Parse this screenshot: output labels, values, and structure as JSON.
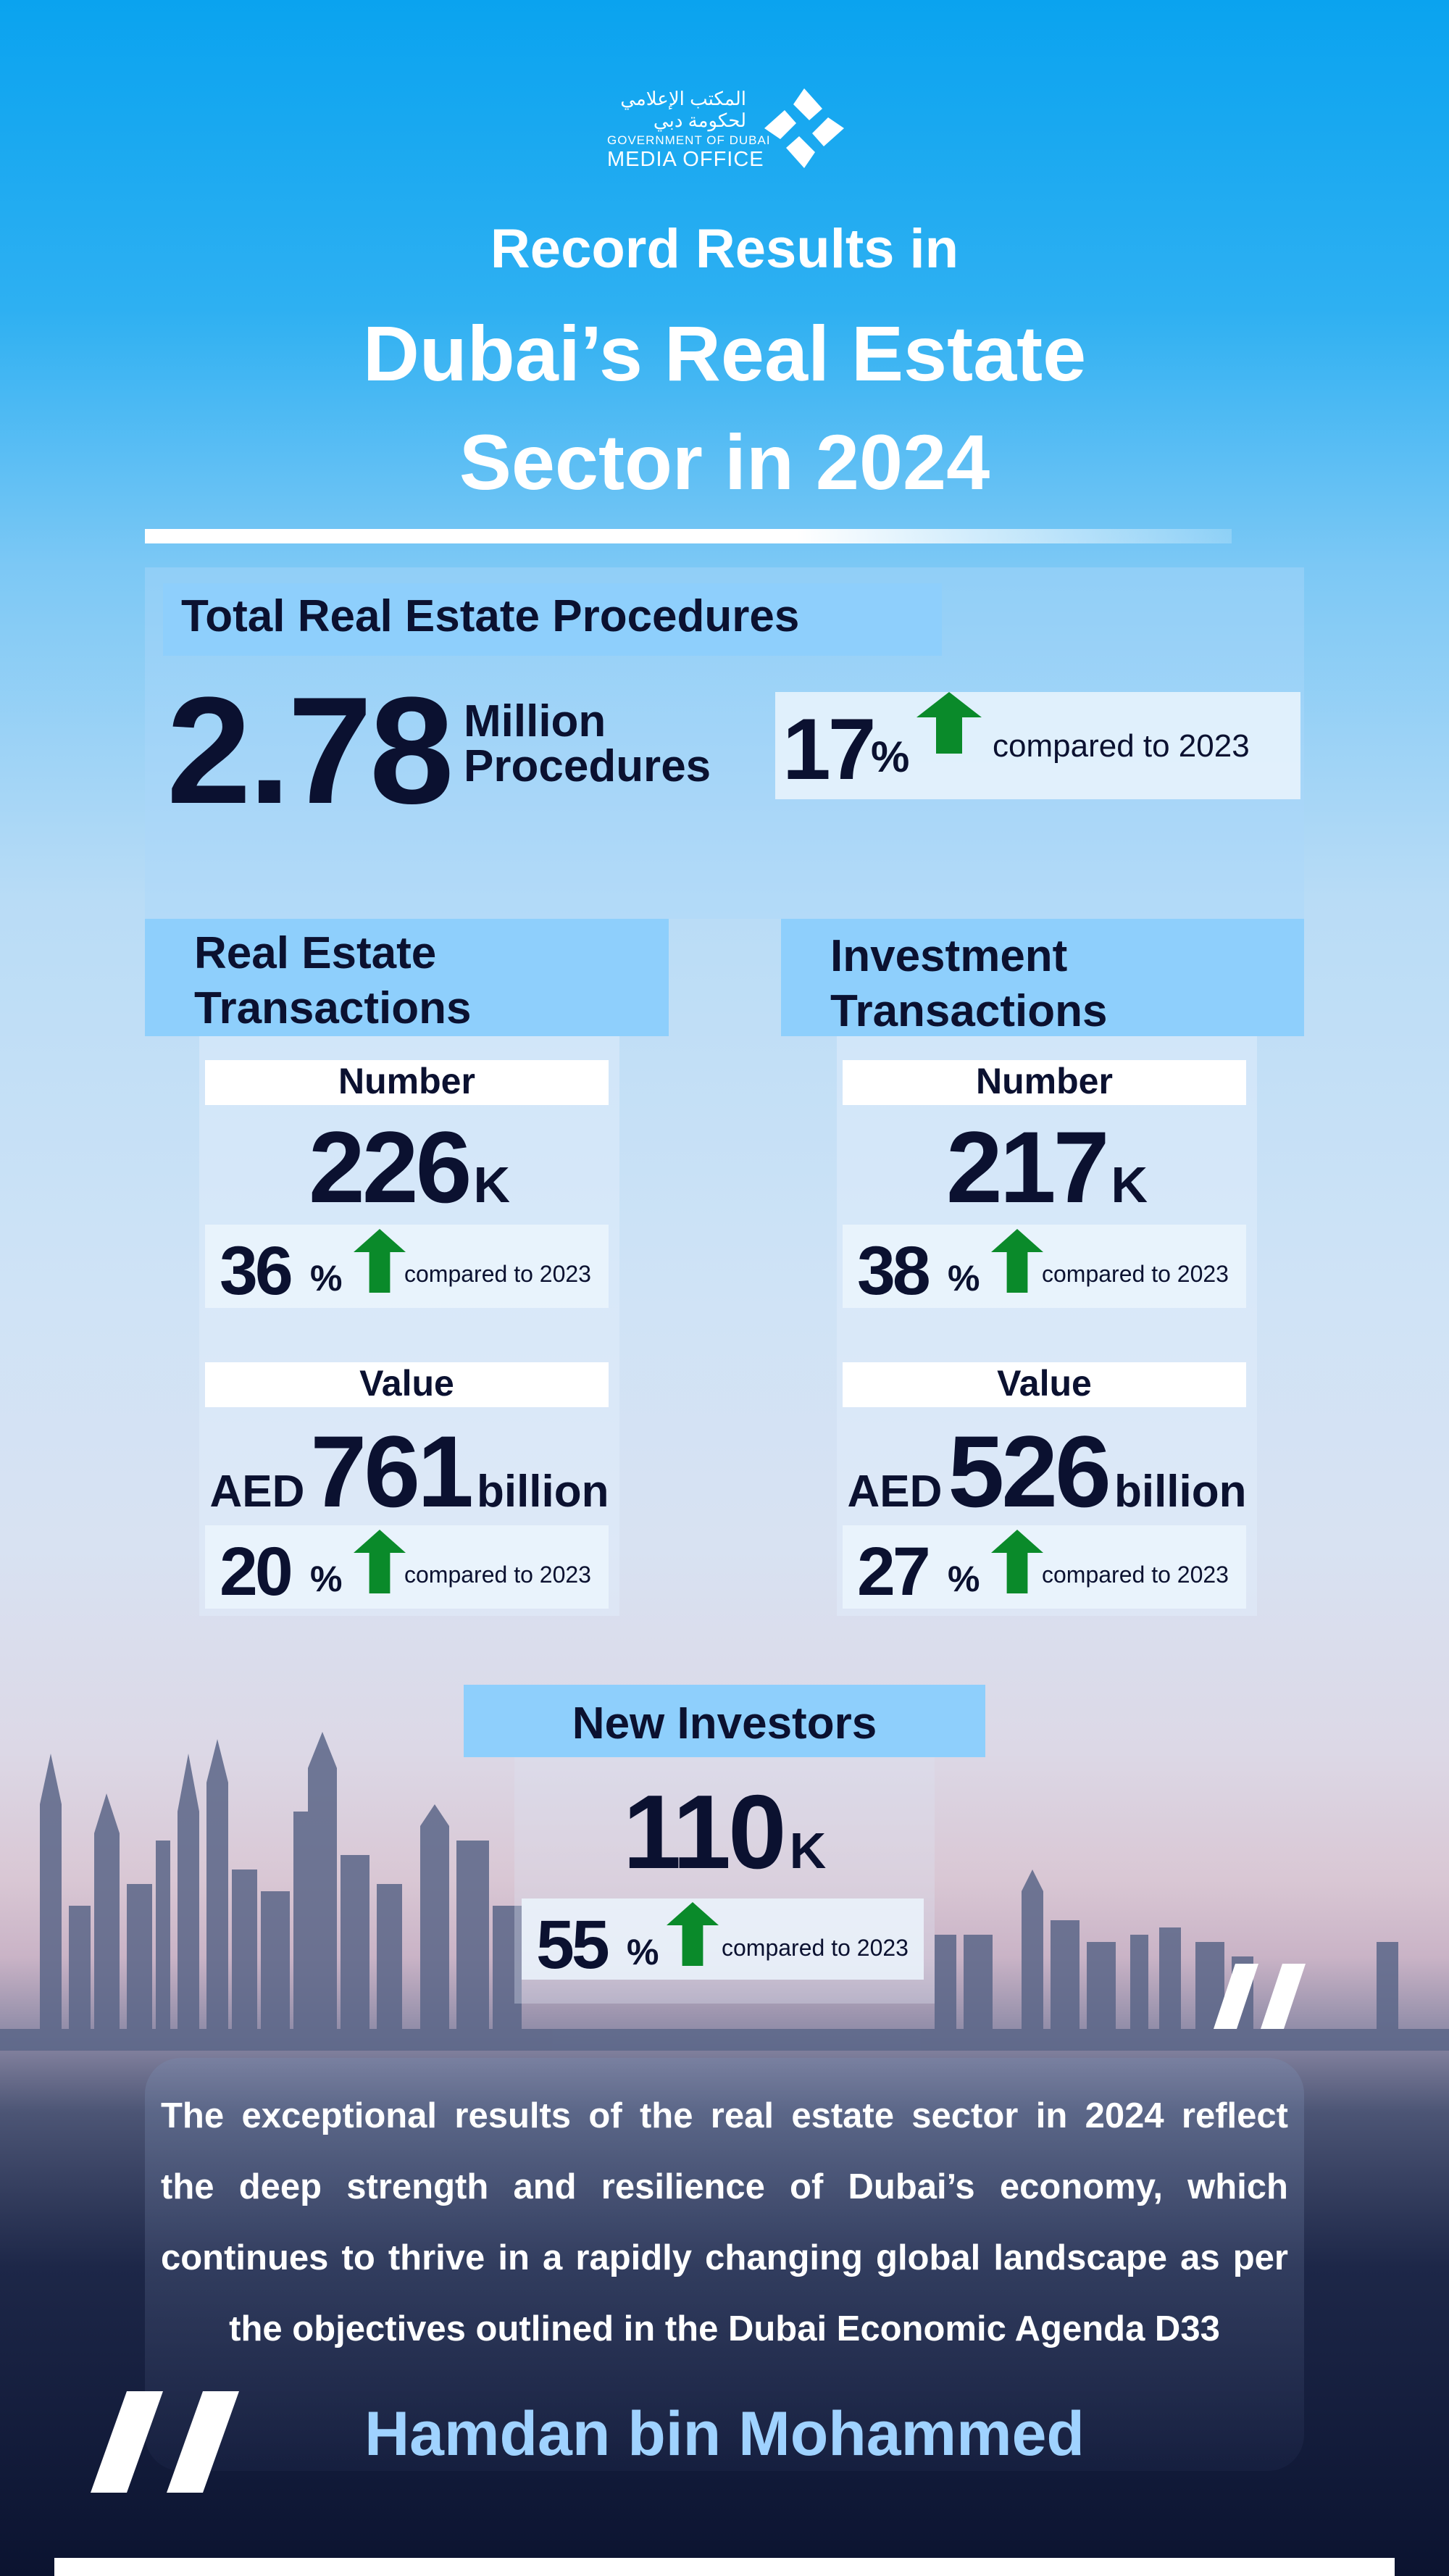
{
  "logo": {
    "arabic_line1": "المكتب الإعلامي",
    "arabic_line2": "لحكومة دبي",
    "gov": "GOVERNMENT OF DUBAI",
    "office": "MEDIA OFFICE"
  },
  "title": {
    "line1": "Record Results in",
    "line2": "Dubai’s Real Estate",
    "line3": "Sector in 2024"
  },
  "total": {
    "header": "Total Real Estate Procedures",
    "value": "2.78",
    "unit1": "Million",
    "unit2": "Procedures",
    "pct": "17",
    "pct_sign": "%",
    "compare": "compared to 2023"
  },
  "real_estate": {
    "header1": "Real Estate",
    "header2": "Transactions",
    "number_label": "Number",
    "number": "226",
    "number_unit": "K",
    "number_pct": "36",
    "value_label": "Value",
    "currency": "AED",
    "value": "761",
    "value_unit": "billion",
    "value_pct": "20",
    "pct_sign": "%",
    "compare": "compared to 2023"
  },
  "investment": {
    "header1": "Investment",
    "header2": "Transactions",
    "number_label": "Number",
    "number": "217",
    "number_unit": "K",
    "number_pct": "38",
    "value_label": "Value",
    "currency": "AED",
    "value": "526",
    "value_unit": "billion",
    "value_pct": "27",
    "pct_sign": "%",
    "compare": "compared to 2023"
  },
  "investors": {
    "header": "New Investors",
    "number": "110",
    "unit": "K",
    "pct": "55",
    "pct_sign": "%",
    "compare": "compared to 2023"
  },
  "quote": {
    "lines": [
      "The exceptional results of the real estate sector in 2024 reflect",
      "the deep strength and resilience of Dubai’s economy, which",
      "continues to thrive in a rapidly changing global landscape as per",
      "the objectives outlined in the Dubai Economic Agenda D33"
    ],
    "author": "Hamdan bin Mohammed"
  },
  "colors": {
    "arrow": "#0a8a2a",
    "header_bg": "#8ecffc",
    "text": "#0b1130",
    "author": "#9fd2ff"
  }
}
